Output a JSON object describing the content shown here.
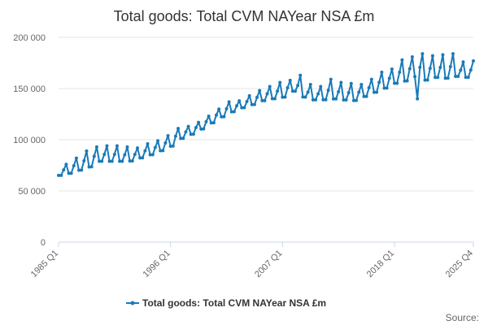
{
  "chart_data": {
    "type": "line",
    "title": "Total goods: Total CVM NAYear NSA £m",
    "xlabel": "",
    "ylabel": "",
    "ylim": [
      0,
      200000
    ],
    "y_ticks": [
      0,
      50000,
      100000,
      150000,
      200000
    ],
    "y_tick_labels": [
      "0",
      "50 000",
      "100 000",
      "150 000",
      "200 000"
    ],
    "x_tick_labels": [
      {
        "label": "1985 Q1",
        "index": 0
      },
      {
        "label": "1996 Q1",
        "index": 44
      },
      {
        "label": "2007 Q1",
        "index": 88
      },
      {
        "label": "2018 Q1",
        "index": 132
      },
      {
        "label": "2025 Q4",
        "index": 163
      }
    ],
    "grid": true,
    "legend_position": "bottom",
    "credit": "Source:",
    "series": [
      {
        "name": "Total goods: Total CVM NAYear NSA £m",
        "color": "#1a7ab8",
        "annual_base": [
          65000,
          67000,
          70000,
          73000,
          79000,
          79000,
          79000,
          79000,
          82000,
          85000,
          89000,
          93000,
          101000,
          105000,
          110000,
          116000,
          122000,
          127000,
          131000,
          134000,
          138000,
          140000,
          141000,
          148000,
          142000,
          139000,
          139000,
          140000,
          139000,
          138000,
          142000,
          146000,
          150000,
          155000,
          157000,
          162000,
          158000,
          161000,
          160000,
          162000,
          161000
        ],
        "q4_peaks": [
          76000,
          82000,
          89000,
          93000,
          94000,
          94000,
          93000,
          92000,
          96000,
          99000,
          104000,
          111000,
          113000,
          117000,
          123000,
          130000,
          137000,
          138000,
          143000,
          148000,
          152000,
          156000,
          158000,
          163000,
          154000,
          152000,
          159000,
          156000,
          155000,
          154000,
          159000,
          166000,
          169000,
          178000,
          181000,
          184000,
          182000,
          183000,
          184000,
          176000,
          177000
        ],
        "notable_values": [
          {
            "label": "2020 Q2",
            "index": 141,
            "value": 140000
          }
        ]
      }
    ]
  }
}
